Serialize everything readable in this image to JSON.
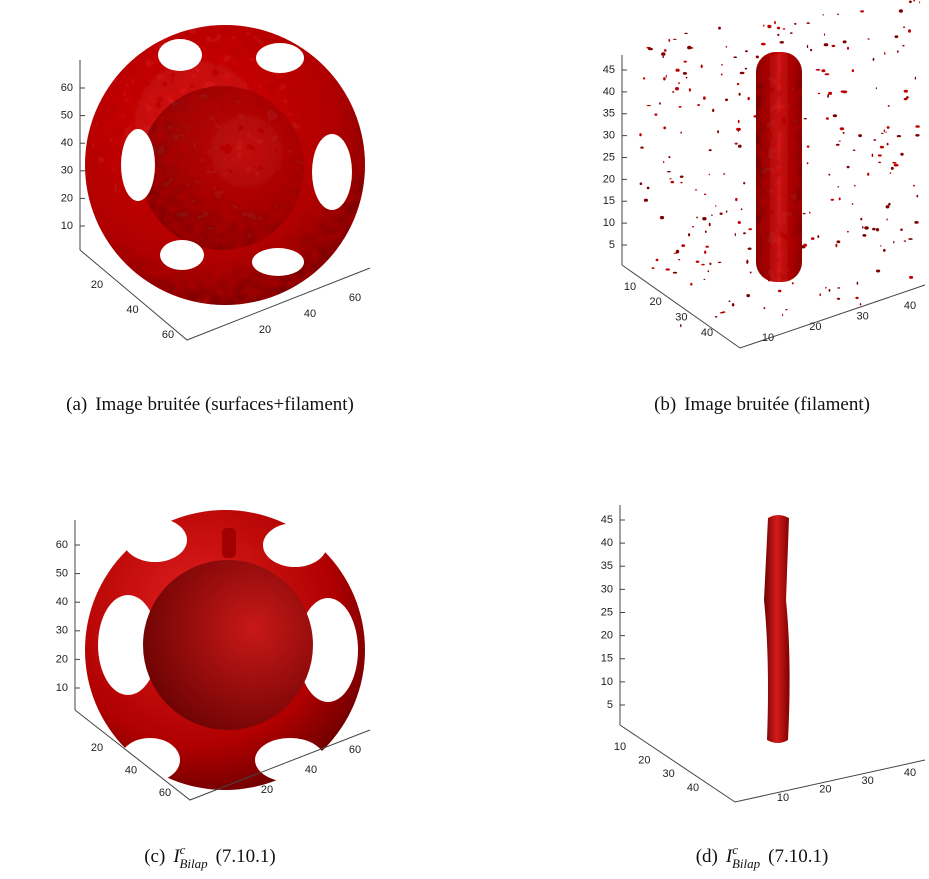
{
  "panels": [
    {
      "caption": {
        "label": "(a)",
        "text": "Image bruitée (surfaces+filament)"
      },
      "z_ticks": [
        10,
        20,
        30,
        40,
        50,
        60
      ],
      "x_ticks": [
        20,
        40,
        60
      ],
      "y_ticks": [
        20,
        40,
        60
      ]
    },
    {
      "caption": {
        "label": "(b)",
        "text": "Image bruitée (filament)"
      },
      "z_ticks": [
        5,
        10,
        15,
        20,
        25,
        30,
        35,
        40,
        45
      ],
      "x_ticks": [
        10,
        20,
        30,
        40
      ],
      "y_ticks": [
        10,
        20,
        30,
        40
      ]
    },
    {
      "caption": {
        "label": "(c)",
        "symbol": "I",
        "superscript": "c",
        "subscript": "Bilap",
        "text": "(7.10.1)"
      },
      "z_ticks": [
        10,
        20,
        30,
        40,
        50,
        60
      ],
      "x_ticks": [
        20,
        40,
        60
      ],
      "y_ticks": [
        20,
        40,
        60
      ]
    },
    {
      "caption": {
        "label": "(d)",
        "symbol": "I",
        "superscript": "c",
        "subscript": "Bilap",
        "text": "(7.10.1)"
      },
      "z_ticks": [
        5,
        10,
        15,
        20,
        25,
        30,
        35,
        40,
        45
      ],
      "x_ticks": [
        10,
        20,
        30,
        40
      ],
      "y_ticks": [
        10,
        20,
        30,
        40
      ]
    }
  ]
}
